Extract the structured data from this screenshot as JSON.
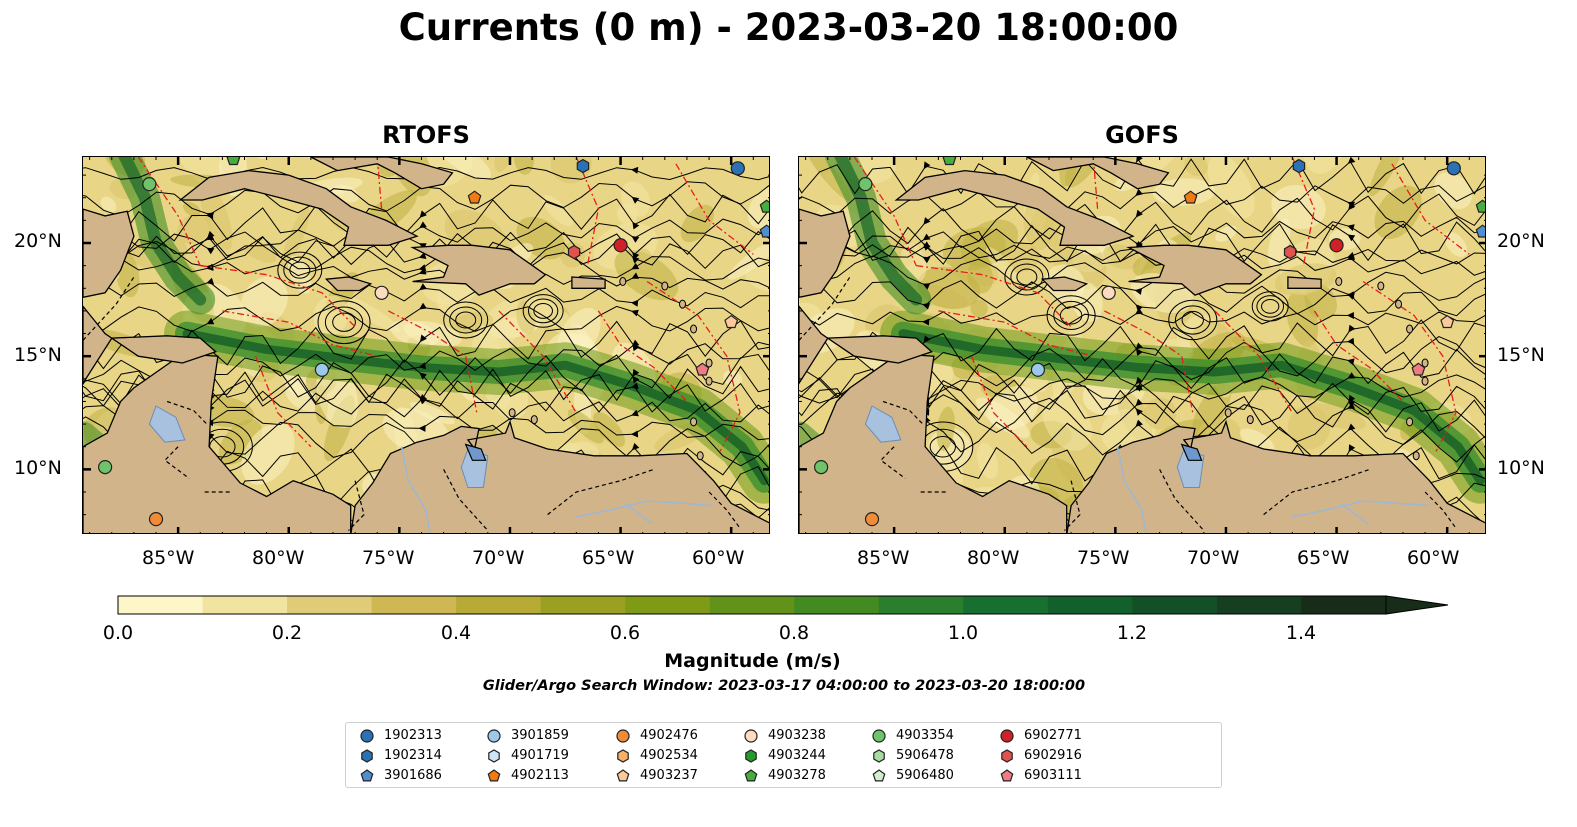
{
  "title": "Currents (0 m) - 2023-03-20 18:00:00",
  "panels": [
    {
      "key": "rtofs",
      "title": "RTOFS",
      "x_ticks": [
        "85°W",
        "80°W",
        "75°W",
        "70°W",
        "65°W",
        "60°W"
      ],
      "y_ticks": [
        "20°N",
        "15°N",
        "10°N"
      ]
    },
    {
      "key": "gofs",
      "title": "GOFS",
      "x_ticks": [
        "85°W",
        "80°W",
        "75°W",
        "70°W",
        "65°W",
        "60°W"
      ],
      "y_ticks": [
        "20°N",
        "15°N",
        "10°N"
      ]
    }
  ],
  "colorbar": {
    "label": "Magnitude (m/s)",
    "ticks": [
      "0.0",
      "0.2",
      "0.4",
      "0.6",
      "0.8",
      "1.0",
      "1.2",
      "1.4"
    ],
    "range": [
      0,
      1.5
    ],
    "extend": "max",
    "colors": [
      "#fdf6c8",
      "#f0e4a0",
      "#e0cc78",
      "#cfb854",
      "#b7aa35",
      "#9aa020",
      "#7f9a14",
      "#63921a",
      "#448a22",
      "#2a7e2e",
      "#17702f",
      "#12602c",
      "#134f27",
      "#163e21",
      "#182c1a"
    ]
  },
  "search_window": "Glider/Argo Search Window: 2023-03-17 04:00:00 to 2023-03-20 18:00:00",
  "legend": [
    {
      "id": "1902313",
      "marker": "circle",
      "color": "#2a72b3"
    },
    {
      "id": "1902314",
      "marker": "hexagon",
      "color": "#2a72b3"
    },
    {
      "id": "3901686",
      "marker": "pentagon",
      "color": "#4f8fd0"
    },
    {
      "id": "3901859",
      "marker": "circle",
      "color": "#9cc8ea"
    },
    {
      "id": "4901719",
      "marker": "hexagon",
      "color": "#cfe5f6"
    },
    {
      "id": "4902113",
      "marker": "pentagon",
      "color": "#f07b12"
    },
    {
      "id": "4902476",
      "marker": "circle",
      "color": "#f28b35"
    },
    {
      "id": "4902534",
      "marker": "hexagon",
      "color": "#f8b069"
    },
    {
      "id": "4903237",
      "marker": "pentagon",
      "color": "#fbc99a"
    },
    {
      "id": "4903238",
      "marker": "circle",
      "color": "#fbdcc0"
    },
    {
      "id": "4903244",
      "marker": "hexagon",
      "color": "#229b2c"
    },
    {
      "id": "4903278",
      "marker": "pentagon",
      "color": "#46ad3f"
    },
    {
      "id": "4903354",
      "marker": "circle",
      "color": "#6fc36a"
    },
    {
      "id": "5906478",
      "marker": "hexagon",
      "color": "#a6dca0"
    },
    {
      "id": "5906480",
      "marker": "pentagon",
      "color": "#cff0c9"
    },
    {
      "id": "6902771",
      "marker": "circle",
      "color": "#cf2127"
    },
    {
      "id": "6902916",
      "marker": "hexagon",
      "color": "#e0524c"
    },
    {
      "id": "6903111",
      "marker": "pentagon",
      "color": "#f07b82"
    }
  ]
}
